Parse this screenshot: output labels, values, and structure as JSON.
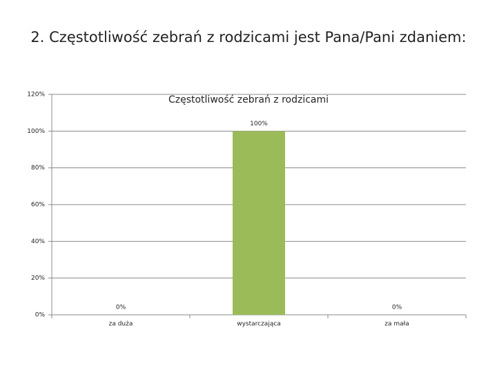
{
  "slide_title": "2. Częstotliwość zebrań z rodzicami jest Pana/Pani zdaniem:",
  "chart_data": {
    "type": "bar",
    "title": "Częstotliwość zebrań z rodzicami",
    "categories": [
      "za duża",
      "wystarczająca",
      "za mała"
    ],
    "values": [
      0,
      100,
      0
    ],
    "value_labels": [
      "0%",
      "100%",
      "0%"
    ],
    "color": "#9bbb59",
    "ylim": [
      0,
      120
    ],
    "yticks": [
      {
        "value": 0,
        "label": "0%"
      },
      {
        "value": 20,
        "label": "20%"
      },
      {
        "value": 40,
        "label": "40%"
      },
      {
        "value": 60,
        "label": "60%"
      },
      {
        "value": 80,
        "label": "80%"
      },
      {
        "value": 100,
        "label": "100%"
      },
      {
        "value": 120,
        "label": "120%"
      }
    ],
    "grid": true
  }
}
